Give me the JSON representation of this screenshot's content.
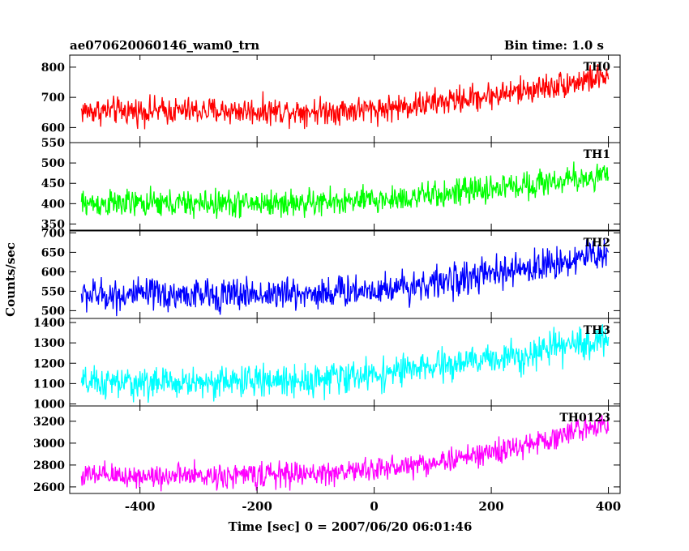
{
  "header": {
    "title": "ae070620060146_wam0_trn",
    "bin_time": "Bin time: 1.0 s"
  },
  "chart_data": {
    "type": "line",
    "xlabel": "Time [sec] 0 = 2007/06/20 06:01:46",
    "ylabel": "Counts/sec",
    "xlim": [
      -520,
      420
    ],
    "x_ticks": [
      -400,
      -200,
      0,
      200,
      400
    ],
    "x": {
      "start": -500,
      "end": 400,
      "step": 1
    },
    "grid": false,
    "panels": [
      {
        "name": "TH0",
        "color": "#ff0000",
        "ylim": [
          550,
          840
        ],
        "y_ticks": [
          600,
          700,
          800
        ],
        "trend": {
          "x": [
            -500,
            -300,
            -100,
            0,
            100,
            250,
            400
          ],
          "y": [
            655,
            655,
            655,
            660,
            680,
            720,
            770
          ]
        },
        "noise_amplitude": 32
      },
      {
        "name": "TH1",
        "color": "#00ff00",
        "ylim": [
          335,
          550
        ],
        "y_ticks": [
          350,
          400,
          450,
          500,
          550
        ],
        "trend": {
          "x": [
            -500,
            -300,
            -100,
            0,
            100,
            250,
            400
          ],
          "y": [
            400,
            400,
            402,
            408,
            420,
            445,
            470
          ]
        },
        "noise_amplitude": 24
      },
      {
        "name": "TH2",
        "color": "#0000ff",
        "ylim": [
          480,
          705
        ],
        "y_ticks": [
          500,
          550,
          600,
          650,
          700
        ],
        "trend": {
          "x": [
            -500,
            -300,
            -100,
            0,
            100,
            250,
            400
          ],
          "y": [
            540,
            540,
            545,
            555,
            570,
            605,
            650
          ]
        },
        "noise_amplitude": 30
      },
      {
        "name": "TH3",
        "color": "#00ffff",
        "ylim": [
          990,
          1420
        ],
        "y_ticks": [
          1000,
          1100,
          1200,
          1300,
          1400
        ],
        "trend": {
          "x": [
            -500,
            -300,
            -100,
            0,
            100,
            250,
            400
          ],
          "y": [
            1100,
            1105,
            1120,
            1145,
            1180,
            1240,
            1320
          ]
        },
        "noise_amplitude": 55
      },
      {
        "name": "TH0123",
        "color": "#ff00ff",
        "ylim": [
          2540,
          3340
        ],
        "y_ticks": [
          2600,
          2800,
          3000,
          3200
        ],
        "trend": {
          "x": [
            -500,
            -300,
            -100,
            0,
            100,
            250,
            400
          ],
          "y": [
            2700,
            2700,
            2720,
            2760,
            2820,
            2960,
            3200
          ]
        },
        "noise_amplitude": 80
      }
    ]
  }
}
